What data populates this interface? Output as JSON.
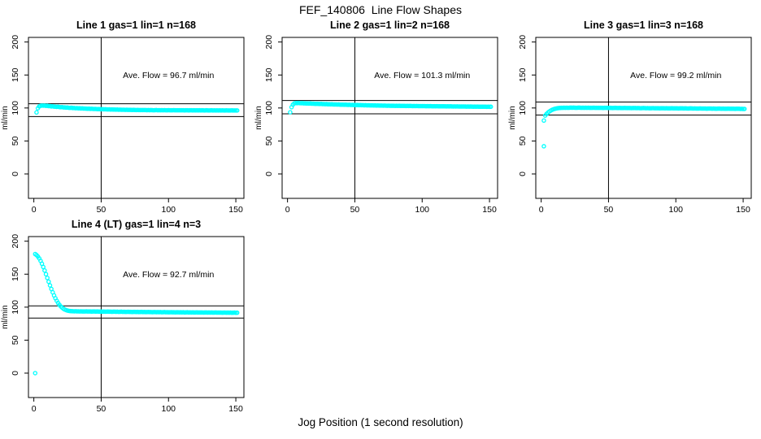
{
  "page": {
    "main_title": "FEF_140806  Line Flow Shapes",
    "x_axis_label": "Jog Position (1 second resolution)"
  },
  "chart_data": [
    {
      "type": "scatter",
      "title": "Line 1 gas=1 lin=1 n=168",
      "ylabel": "ml/min",
      "annotation": "Ave. Flow =  96.7  ml/min",
      "annotation_xy": [
        100,
        150
      ],
      "ave_flow": 96.7,
      "xlim": [
        -4,
        156
      ],
      "ylim": [
        -37,
        207
      ],
      "x_ticks": [
        0,
        50,
        100,
        150
      ],
      "y_ticks": [
        0,
        50,
        100,
        150,
        200
      ],
      "vline_x": 50,
      "hlines": [
        106.4,
        87.0
      ],
      "point_color": "#00FFFF",
      "x_start": 2,
      "x_step": 1,
      "y": [
        93.3,
        99.6,
        102.4,
        103.3,
        103.7,
        103.5,
        103.6,
        103.2,
        103.4,
        102.8,
        102.9,
        102.4,
        102.6,
        102.1,
        102.0,
        101.7,
        101.9,
        101.4,
        101.2,
        101.3,
        100.9,
        100.8,
        100.6,
        100.7,
        100.3,
        100.2,
        100.4,
        99.9,
        100.0,
        99.7,
        99.8,
        99.5,
        99.6,
        99.3,
        99.4,
        99.1,
        99.2,
        99.0,
        98.9,
        99.0,
        98.7,
        98.8,
        98.6,
        98.5,
        98.6,
        98.3,
        98.4,
        98.2,
        98.1,
        98.2,
        98.0,
        98.1,
        97.9,
        97.8,
        97.9,
        97.7,
        97.8,
        97.6,
        97.7,
        97.5,
        97.6,
        97.4,
        97.5,
        97.3,
        97.4,
        97.3,
        97.2,
        97.3,
        97.1,
        97.2,
        97.1,
        97.0,
        97.1,
        97.0,
        96.9,
        97.0,
        96.9,
        96.8,
        96.9,
        96.8,
        96.9,
        96.8,
        96.7,
        96.8,
        96.7,
        96.8,
        96.7,
        96.6,
        96.7,
        96.8,
        96.6,
        96.7,
        96.6,
        96.7,
        96.6,
        96.7,
        96.6,
        96.5,
        96.7,
        96.6,
        96.5,
        96.6,
        96.7,
        96.5,
        96.6,
        96.5,
        96.6,
        96.5,
        96.6,
        96.5,
        96.4,
        96.6,
        96.5,
        96.4,
        96.5,
        96.6,
        96.4,
        96.5,
        96.4,
        96.5,
        96.4,
        96.5,
        96.4,
        96.5,
        96.4,
        96.3,
        96.5,
        96.4,
        96.3,
        96.4,
        96.5,
        96.3,
        96.4,
        96.3,
        96.4,
        96.3,
        96.4,
        96.3,
        96.4,
        96.3,
        96.2,
        96.4,
        96.3,
        96.2,
        96.3,
        96.4,
        96.2,
        96.3,
        96.2,
        96.3
      ],
      "outliers": []
    },
    {
      "type": "scatter",
      "title": "Line 2 gas=1 lin=2 n=168",
      "ylabel": "ml/min",
      "annotation": "Ave. Flow =  101.3  ml/min",
      "annotation_xy": [
        100,
        150
      ],
      "ave_flow": 101.3,
      "xlim": [
        -4,
        156
      ],
      "ylim": [
        -37,
        207
      ],
      "x_ticks": [
        0,
        50,
        100,
        150
      ],
      "y_ticks": [
        0,
        50,
        100,
        150,
        200
      ],
      "vline_x": 50,
      "hlines": [
        111.4,
        91.2
      ],
      "point_color": "#00FFFF",
      "x_start": 2,
      "x_step": 1,
      "y": [
        93.5,
        101.2,
        105.1,
        106.9,
        107.5,
        107.3,
        107.6,
        107.4,
        107.2,
        107.3,
        107.0,
        107.1,
        106.8,
        106.9,
        106.7,
        106.8,
        106.5,
        106.6,
        106.4,
        106.3,
        106.4,
        106.2,
        106.1,
        106.2,
        105.9,
        106.0,
        105.8,
        105.9,
        105.6,
        105.7,
        105.5,
        105.6,
        105.4,
        105.3,
        105.4,
        105.2,
        105.3,
        105.1,
        105.0,
        105.1,
        104.9,
        105.0,
        104.8,
        104.7,
        104.8,
        104.6,
        104.7,
        104.5,
        104.6,
        104.4,
        104.5,
        104.3,
        104.4,
        104.2,
        104.3,
        104.1,
        104.2,
        104.0,
        104.1,
        104.0,
        103.9,
        104.0,
        103.8,
        103.9,
        103.7,
        103.8,
        103.7,
        103.6,
        103.7,
        103.5,
        103.6,
        103.5,
        103.4,
        103.5,
        103.4,
        103.3,
        103.4,
        103.3,
        103.2,
        103.3,
        103.2,
        103.3,
        103.1,
        103.2,
        103.1,
        103.2,
        103.0,
        103.1,
        103.0,
        103.1,
        103.0,
        102.9,
        103.0,
        102.9,
        103.0,
        102.9,
        102.8,
        102.9,
        102.8,
        102.9,
        102.8,
        102.7,
        102.8,
        102.7,
        102.8,
        102.7,
        102.6,
        102.7,
        102.6,
        102.7,
        102.6,
        102.5,
        102.6,
        102.5,
        102.6,
        102.5,
        102.4,
        102.5,
        102.4,
        102.5,
        102.4,
        102.3,
        102.4,
        102.3,
        102.4,
        102.3,
        102.2,
        102.3,
        102.2,
        102.3,
        102.2,
        102.1,
        102.2,
        102.1,
        102.2,
        102.1,
        102.0,
        102.1,
        102.0,
        102.1,
        102.0,
        101.9,
        102.0,
        101.9,
        102.0,
        101.9,
        101.8,
        101.9,
        101.8,
        101.9
      ],
      "outliers": []
    },
    {
      "type": "scatter",
      "title": "Line 3 gas=1 lin=3 n=168",
      "ylabel": "ml/min",
      "annotation": "Ave. Flow =  99.2  ml/min",
      "annotation_xy": [
        100,
        150
      ],
      "ave_flow": 99.2,
      "xlim": [
        -4,
        156
      ],
      "ylim": [
        -37,
        207
      ],
      "x_ticks": [
        0,
        50,
        100,
        150
      ],
      "y_ticks": [
        0,
        50,
        100,
        150,
        200
      ],
      "vline_x": 50,
      "hlines": [
        109.1,
        89.3
      ],
      "point_color": "#00FFFF",
      "x_start": 3,
      "x_step": 1,
      "y": [
        88.5,
        91.0,
        93.0,
        94.6,
        96.0,
        97.1,
        98.0,
        98.7,
        99.2,
        99.6,
        99.9,
        100.1,
        100.2,
        100.3,
        100.4,
        100.3,
        100.4,
        100.3,
        100.4,
        100.5,
        100.4,
        100.5,
        100.4,
        100.3,
        100.4,
        100.5,
        100.4,
        100.3,
        100.4,
        100.3,
        100.4,
        100.3,
        100.4,
        100.3,
        100.2,
        100.3,
        100.4,
        100.3,
        100.2,
        100.3,
        100.2,
        100.3,
        100.2,
        100.1,
        100.2,
        100.3,
        100.2,
        100.1,
        100.2,
        100.1,
        100.0,
        100.1,
        100.2,
        100.1,
        100.0,
        100.1,
        100.0,
        99.9,
        100.0,
        100.1,
        100.0,
        99.9,
        100.0,
        99.9,
        99.8,
        99.9,
        100.0,
        99.9,
        99.8,
        99.9,
        99.8,
        99.7,
        99.8,
        99.9,
        99.8,
        99.7,
        99.8,
        99.7,
        99.6,
        99.7,
        99.8,
        99.7,
        99.6,
        99.7,
        99.6,
        99.5,
        99.6,
        99.7,
        99.6,
        99.5,
        99.6,
        99.5,
        99.4,
        99.5,
        99.6,
        99.5,
        99.4,
        99.5,
        99.4,
        99.3,
        99.4,
        99.5,
        99.4,
        99.3,
        99.4,
        99.3,
        99.2,
        99.3,
        99.4,
        99.3,
        99.2,
        99.3,
        99.2,
        99.1,
        99.2,
        99.3,
        99.2,
        99.1,
        99.2,
        99.1,
        99.0,
        99.1,
        99.2,
        99.1,
        99.0,
        99.1,
        99.0,
        98.9,
        99.0,
        99.1,
        99.0,
        98.9,
        99.0,
        98.9,
        98.8,
        98.9,
        99.0,
        98.9,
        98.8,
        98.9,
        98.8,
        98.7,
        98.8,
        98.9,
        98.8,
        98.6,
        98.7,
        98.5,
        98.6
      ],
      "outliers": [
        [
          2,
          81
        ],
        [
          2,
          42
        ]
      ]
    },
    {
      "type": "scatter",
      "title": "Line 4 (LT) gas=1 lin=4 n=3",
      "ylabel": "ml/min",
      "annotation": "Ave. Flow =  92.7  ml/min",
      "annotation_xy": [
        100,
        150
      ],
      "ave_flow": 92.7,
      "xlim": [
        -4,
        156
      ],
      "ylim": [
        -37,
        207
      ],
      "x_ticks": [
        0,
        50,
        100,
        150
      ],
      "y_ticks": [
        0,
        50,
        100,
        150,
        200
      ],
      "vline_x": 50,
      "hlines": [
        102.0,
        83.4
      ],
      "point_color": "#00FFFF",
      "x_start": 1,
      "x_step": 1,
      "y": [
        180.5,
        179.0,
        176.8,
        173.9,
        170.2,
        165.8,
        160.9,
        155.6,
        150.0,
        144.3,
        138.6,
        133.0,
        127.6,
        122.5,
        117.8,
        113.5,
        109.7,
        106.4,
        103.5,
        101.1,
        99.2,
        97.6,
        96.4,
        95.5,
        94.8,
        94.4,
        94.1,
        93.9,
        93.8,
        93.7,
        93.8,
        93.6,
        93.7,
        93.5,
        93.6,
        93.5,
        93.4,
        93.5,
        93.6,
        93.4,
        93.5,
        93.4,
        93.3,
        93.4,
        93.5,
        93.3,
        93.4,
        93.3,
        93.2,
        93.3,
        93.2,
        93.3,
        93.1,
        93.2,
        93.3,
        93.1,
        93.2,
        93.0,
        93.1,
        93.2,
        93.0,
        93.1,
        92.9,
        93.0,
        93.1,
        92.9,
        93.0,
        92.8,
        92.9,
        93.0,
        92.8,
        92.9,
        92.7,
        92.8,
        92.9,
        92.7,
        92.8,
        92.6,
        92.7,
        92.8,
        92.6,
        92.7,
        92.5,
        92.6,
        92.7,
        92.5,
        92.6,
        92.4,
        92.5,
        92.6,
        92.4,
        92.5,
        92.4,
        92.5,
        92.3,
        92.4,
        92.5,
        92.3,
        92.4,
        92.2,
        92.3,
        92.4,
        92.2,
        92.3,
        92.1,
        92.2,
        92.3,
        92.1,
        92.2,
        92.1,
        92.2,
        92.0,
        92.1,
        92.2,
        92.0,
        92.1,
        92.0,
        92.1,
        91.9,
        92.0,
        92.1,
        91.9,
        92.0,
        91.9,
        92.0,
        91.8,
        91.9,
        92.0,
        91.8,
        91.9,
        91.8,
        91.9,
        91.7,
        91.8,
        91.9,
        91.7,
        91.8,
        91.7,
        91.8,
        91.6,
        91.7,
        91.8,
        91.6,
        91.7,
        91.6,
        91.7,
        91.5,
        91.6,
        91.7,
        91.5,
        91.6
      ],
      "outliers": [
        [
          1,
          0
        ]
      ]
    }
  ]
}
